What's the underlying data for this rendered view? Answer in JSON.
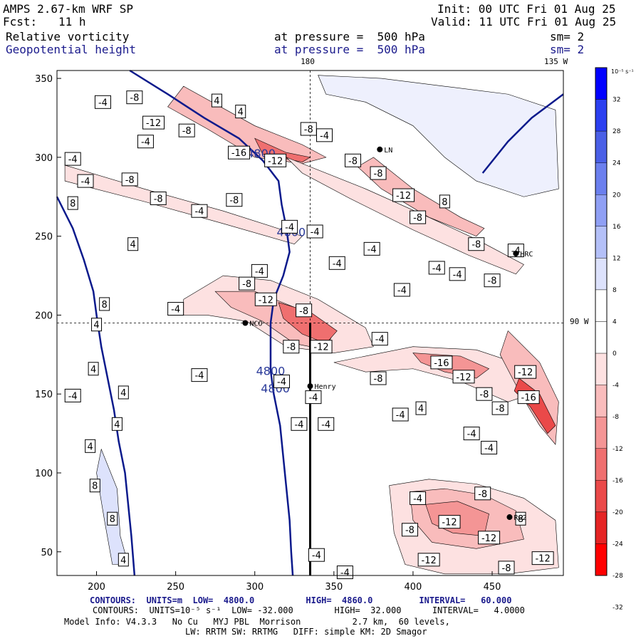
{
  "header": {
    "model": "AMPS 2.67-km WRF SP",
    "fcst_label": "Fcst:",
    "fcst_value": "11 h",
    "init": "Init: 00 UTC Fri 01 Aug 25",
    "valid": "Valid: 11 UTC Fri 01 Aug 25",
    "field1": "Relative vorticity",
    "field2": "Geopotential height",
    "at_pressure1": "at pressure =  500 hPa",
    "at_pressure2": "at pressure =  500 hPa",
    "sm1": "sm= 2",
    "sm2": "sm= 2"
  },
  "map_labels": {
    "top_180": "180",
    "top_135w": "135 W",
    "right_90w": "90 W",
    "stations": [
      "NCO",
      "Henry",
      "HRC",
      "RG2",
      "LN"
    ]
  },
  "footer": {
    "line1": "CONTOURS:  UNITS=m  LOW=  4800.0          HIGH=  4860.0         INTERVAL=   60.000",
    "line2": "CONTOURS:  UNITS=10⁻⁵ s⁻¹  LOW= -32.000        HIGH=  32.000      INTERVAL=   4.0000",
    "line3": "Model Info: V4.3.3   No Cu   MYJ PBL  Morrison          2.7 km,  60 levels,",
    "line4": "LW: RRTM SW: RRTMG   DIFF: simple KM: 2D Smagor"
  },
  "colors": {
    "height_contour": "#0b1a8c",
    "colorbar": [
      "#0000ff",
      "#2b3ff0",
      "#4a5fe6",
      "#6b7fee",
      "#8f9ff4",
      "#b4c0f8",
      "#dde2fc",
      "#ffffff",
      "#ffffff",
      "#fde1e1",
      "#f9bcbc",
      "#f49595",
      "#ef6f6f",
      "#ea4949",
      "#e52424",
      "#ff0000"
    ]
  },
  "chart_data": {
    "type": "contour",
    "title": "Relative vorticity / Geopotential height at 500 hPa",
    "xlim": [
      175,
      495
    ],
    "ylim": [
      35,
      355
    ],
    "x_ticks": [
      200,
      250,
      300,
      350,
      400,
      450
    ],
    "y_ticks": [
      50,
      100,
      150,
      200,
      250,
      300,
      350
    ],
    "colorbar_unit": "10⁻⁵ s⁻¹",
    "colorbar_ticks": [
      32,
      28,
      24,
      20,
      16,
      12,
      8,
      4,
      0,
      -4,
      -8,
      -12,
      -16,
      -20,
      -24,
      -28,
      -32
    ],
    "height_contour_labels": [
      {
        "value": "4800",
        "x": 304,
        "y": 300
      },
      {
        "value": "4800",
        "x": 323,
        "y": 250
      },
      {
        "value": "4800",
        "x": 310,
        "y": 162
      },
      {
        "value": "4800",
        "x": 313,
        "y": 151
      }
    ],
    "height_contours": [
      [
        [
          221,
          355
        ],
        [
          245,
          340
        ],
        [
          268,
          325
        ],
        [
          290,
          312
        ],
        [
          305,
          298
        ],
        [
          315,
          285
        ],
        [
          317,
          270
        ],
        [
          320,
          255
        ],
        [
          322,
          240
        ],
        [
          318,
          225
        ],
        [
          312,
          210
        ],
        [
          310,
          195
        ],
        [
          310,
          180
        ],
        [
          310,
          165
        ],
        [
          312,
          150
        ],
        [
          316,
          130
        ],
        [
          318,
          110
        ],
        [
          320,
          90
        ],
        [
          322,
          70
        ],
        [
          323,
          50
        ],
        [
          324,
          35
        ]
      ],
      [
        [
          175,
          275
        ],
        [
          185,
          255
        ],
        [
          192,
          235
        ],
        [
          198,
          215
        ],
        [
          200,
          200
        ],
        [
          203,
          180
        ],
        [
          207,
          160
        ],
        [
          211,
          140
        ],
        [
          214,
          120
        ],
        [
          218,
          100
        ],
        [
          220,
          80
        ],
        [
          222,
          60
        ],
        [
          224,
          35
        ]
      ],
      [
        [
          444,
          290
        ],
        [
          460,
          310
        ],
        [
          475,
          325
        ],
        [
          495,
          340
        ]
      ]
    ],
    "vorticity_labels": [
      {
        "value": "-4",
        "x": 204,
        "y": 335
      },
      {
        "value": "-8",
        "x": 224,
        "y": 338
      },
      {
        "value": "4",
        "x": 276,
        "y": 336
      },
      {
        "value": "4",
        "x": 291,
        "y": 329
      },
      {
        "value": "-12",
        "x": 236,
        "y": 322
      },
      {
        "value": "-8",
        "x": 257,
        "y": 317
      },
      {
        "value": "-4",
        "x": 231,
        "y": 310
      },
      {
        "value": "-16",
        "x": 290,
        "y": 303
      },
      {
        "value": "-12",
        "x": 313,
        "y": 298
      },
      {
        "value": "-4",
        "x": 185,
        "y": 299
      },
      {
        "value": "-4",
        "x": 193,
        "y": 285
      },
      {
        "value": "-8",
        "x": 221,
        "y": 286
      },
      {
        "value": "-8",
        "x": 239,
        "y": 274
      },
      {
        "value": "8",
        "x": 185,
        "y": 271
      },
      {
        "value": "-8",
        "x": 287,
        "y": 273
      },
      {
        "value": "-4",
        "x": 265,
        "y": 266
      },
      {
        "value": "-4",
        "x": 322,
        "y": 256
      },
      {
        "value": "-4",
        "x": 338,
        "y": 253
      },
      {
        "value": "4",
        "x": 223,
        "y": 245
      },
      {
        "value": "-4",
        "x": 352,
        "y": 233
      },
      {
        "value": "-4",
        "x": 303,
        "y": 228
      },
      {
        "value": "-8",
        "x": 295,
        "y": 220
      },
      {
        "value": "-12",
        "x": 307,
        "y": 210
      },
      {
        "value": "-4",
        "x": 250,
        "y": 204
      },
      {
        "value": "4",
        "x": 200,
        "y": 194
      },
      {
        "value": "8",
        "x": 205,
        "y": 207
      },
      {
        "value": "-8",
        "x": 331,
        "y": 203
      },
      {
        "value": "-8",
        "x": 323,
        "y": 180
      },
      {
        "value": "-12",
        "x": 342,
        "y": 180
      },
      {
        "value": "-4",
        "x": 379,
        "y": 185
      },
      {
        "value": "-16",
        "x": 418,
        "y": 170
      },
      {
        "value": "-12",
        "x": 432,
        "y": 161
      },
      {
        "value": "-8",
        "x": 378,
        "y": 160
      },
      {
        "value": "-4",
        "x": 265,
        "y": 162
      },
      {
        "value": "4",
        "x": 198,
        "y": 166
      },
      {
        "value": "-4",
        "x": 185,
        "y": 149
      },
      {
        "value": "4",
        "x": 217,
        "y": 151
      },
      {
        "value": "-4",
        "x": 337,
        "y": 148
      },
      {
        "value": "-4",
        "x": 317,
        "y": 158
      },
      {
        "value": "4",
        "x": 405,
        "y": 141
      },
      {
        "value": "-4",
        "x": 392,
        "y": 137
      },
      {
        "value": "-8",
        "x": 445,
        "y": 150
      },
      {
        "value": "-8",
        "x": 455,
        "y": 141
      },
      {
        "value": "-4",
        "x": 328,
        "y": 131
      },
      {
        "value": "-4",
        "x": 345,
        "y": 131
      },
      {
        "value": "4",
        "x": 213,
        "y": 131
      },
      {
        "value": "-4",
        "x": 437,
        "y": 125
      },
      {
        "value": "-4",
        "x": 448,
        "y": 116
      },
      {
        "value": "4",
        "x": 196,
        "y": 117
      },
      {
        "value": "-12",
        "x": 471,
        "y": 164
      },
      {
        "value": "-16",
        "x": 473,
        "y": 148
      },
      {
        "value": "8",
        "x": 199,
        "y": 92
      },
      {
        "value": "8",
        "x": 210,
        "y": 71
      },
      {
        "value": "4",
        "x": 217,
        "y": 45
      },
      {
        "value": "-4",
        "x": 403,
        "y": 84
      },
      {
        "value": "-8",
        "x": 398,
        "y": 64
      },
      {
        "value": "-8",
        "x": 444,
        "y": 87
      },
      {
        "value": "-12",
        "x": 423,
        "y": 69
      },
      {
        "value": "-12",
        "x": 448,
        "y": 59
      },
      {
        "value": "-12",
        "x": 410,
        "y": 45
      },
      {
        "value": "-8",
        "x": 459,
        "y": 40
      },
      {
        "value": "-12",
        "x": 482,
        "y": 46
      },
      {
        "value": "-4",
        "x": 339,
        "y": 48
      },
      {
        "value": "-4",
        "x": 357,
        "y": 37
      },
      {
        "value": "8",
        "x": 468,
        "y": 71
      },
      {
        "value": "-8",
        "x": 334,
        "y": 318
      },
      {
        "value": "-4",
        "x": 344,
        "y": 314
      },
      {
        "value": "-8",
        "x": 362,
        "y": 298
      },
      {
        "value": "-8",
        "x": 378,
        "y": 290
      },
      {
        "value": "-12",
        "x": 394,
        "y": 276
      },
      {
        "value": "-8",
        "x": 403,
        "y": 262
      },
      {
        "value": "8",
        "x": 420,
        "y": 272
      },
      {
        "value": "-8",
        "x": 440,
        "y": 245
      },
      {
        "value": "-8",
        "x": 450,
        "y": 222
      },
      {
        "value": "-4",
        "x": 415,
        "y": 230
      },
      {
        "value": "-4",
        "x": 428,
        "y": 226
      },
      {
        "value": "-4",
        "x": 393,
        "y": 216
      },
      {
        "value": "-4",
        "x": 374,
        "y": 242
      },
      {
        "value": "-4",
        "x": 465,
        "y": 241
      }
    ],
    "stations": [
      {
        "name": "NCO",
        "x": 294,
        "y": 195
      },
      {
        "name": "Henry",
        "x": 335,
        "y": 155
      },
      {
        "name": "HRC",
        "x": 465,
        "y": 239
      },
      {
        "name": "RG2",
        "x": 461,
        "y": 72
      },
      {
        "name": "LN",
        "x": 379,
        "y": 305
      }
    ]
  }
}
